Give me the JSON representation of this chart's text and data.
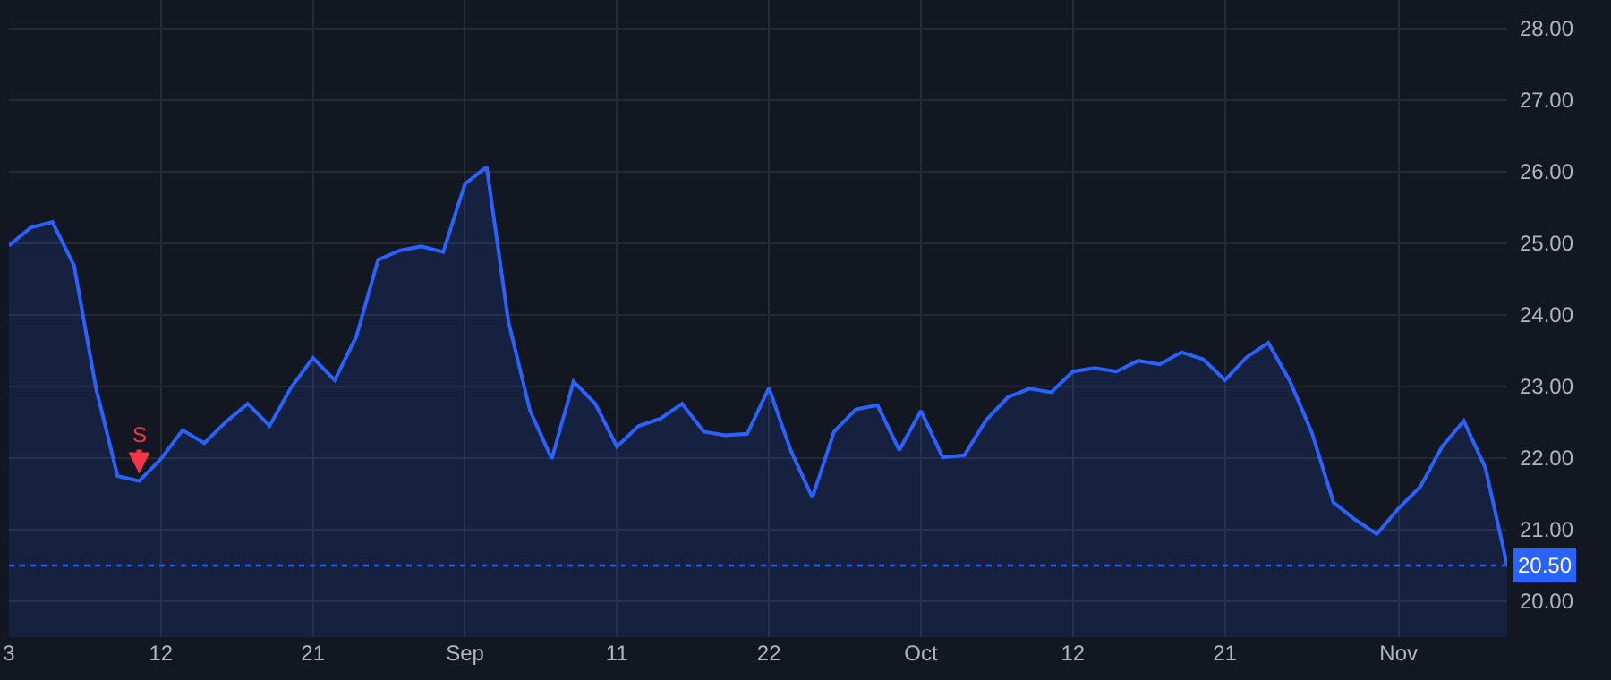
{
  "chart_data": {
    "type": "area",
    "categories": [
      "3",
      null,
      null,
      null,
      null,
      null,
      null,
      "12",
      null,
      null,
      null,
      null,
      null,
      null,
      "21",
      null,
      null,
      null,
      null,
      null,
      null,
      "Sep",
      null,
      null,
      null,
      null,
      null,
      null,
      "11",
      null,
      null,
      null,
      null,
      null,
      null,
      "22",
      null,
      null,
      null,
      null,
      null,
      null,
      "Oct",
      null,
      null,
      null,
      null,
      null,
      null,
      "12",
      null,
      null,
      null,
      null,
      null,
      null,
      "21",
      null,
      null,
      null,
      null,
      null,
      null,
      null,
      "Nov",
      null,
      null,
      null,
      null,
      null
    ],
    "series": [
      {
        "color": "#2962ff",
        "values": [
          24.97,
          25.22,
          25.3,
          24.69,
          22.99,
          21.75,
          21.68,
          21.99,
          22.39,
          22.21,
          22.51,
          22.76,
          22.45,
          22.99,
          23.4,
          23.09,
          23.7,
          24.77,
          24.9,
          24.96,
          24.88,
          25.83,
          26.07,
          23.91,
          22.66,
          21.99,
          23.07,
          22.76,
          22.16,
          22.45,
          22.55,
          22.76,
          22.37,
          22.32,
          22.34,
          22.98,
          22.11,
          21.45,
          22.37,
          22.68,
          22.74,
          22.11,
          22.66,
          22.01,
          22.04,
          22.53,
          22.85,
          22.97,
          22.92,
          23.21,
          23.26,
          23.21,
          23.36,
          23.31,
          23.48,
          23.38,
          23.09,
          23.41,
          23.61,
          23.07,
          22.36,
          21.38,
          21.14,
          20.94,
          21.3,
          21.6,
          22.16,
          22.52,
          21.86,
          20.5
        ]
      }
    ],
    "ylim": [
      19.5,
      28.4
    ],
    "yticks": [
      {
        "value": 20,
        "label": "20.00"
      },
      {
        "value": 21,
        "label": "21.00"
      },
      {
        "value": 22,
        "label": "22.00"
      },
      {
        "value": 23,
        "label": "23.00"
      },
      {
        "value": 24,
        "label": "24.00"
      },
      {
        "value": 25,
        "label": "25.00"
      },
      {
        "value": 26,
        "label": "26.00"
      },
      {
        "value": 27,
        "label": "27.00"
      },
      {
        "value": 28,
        "label": "28.00"
      }
    ],
    "grid": true,
    "legend": false,
    "ref_lines": [
      {
        "axis": "y",
        "value": 20.5,
        "label": "20.50",
        "color": "#2962ff",
        "line_style": "dotted"
      }
    ],
    "annotations": [
      {
        "text": "S",
        "y": 21.68
      }
    ]
  }
}
